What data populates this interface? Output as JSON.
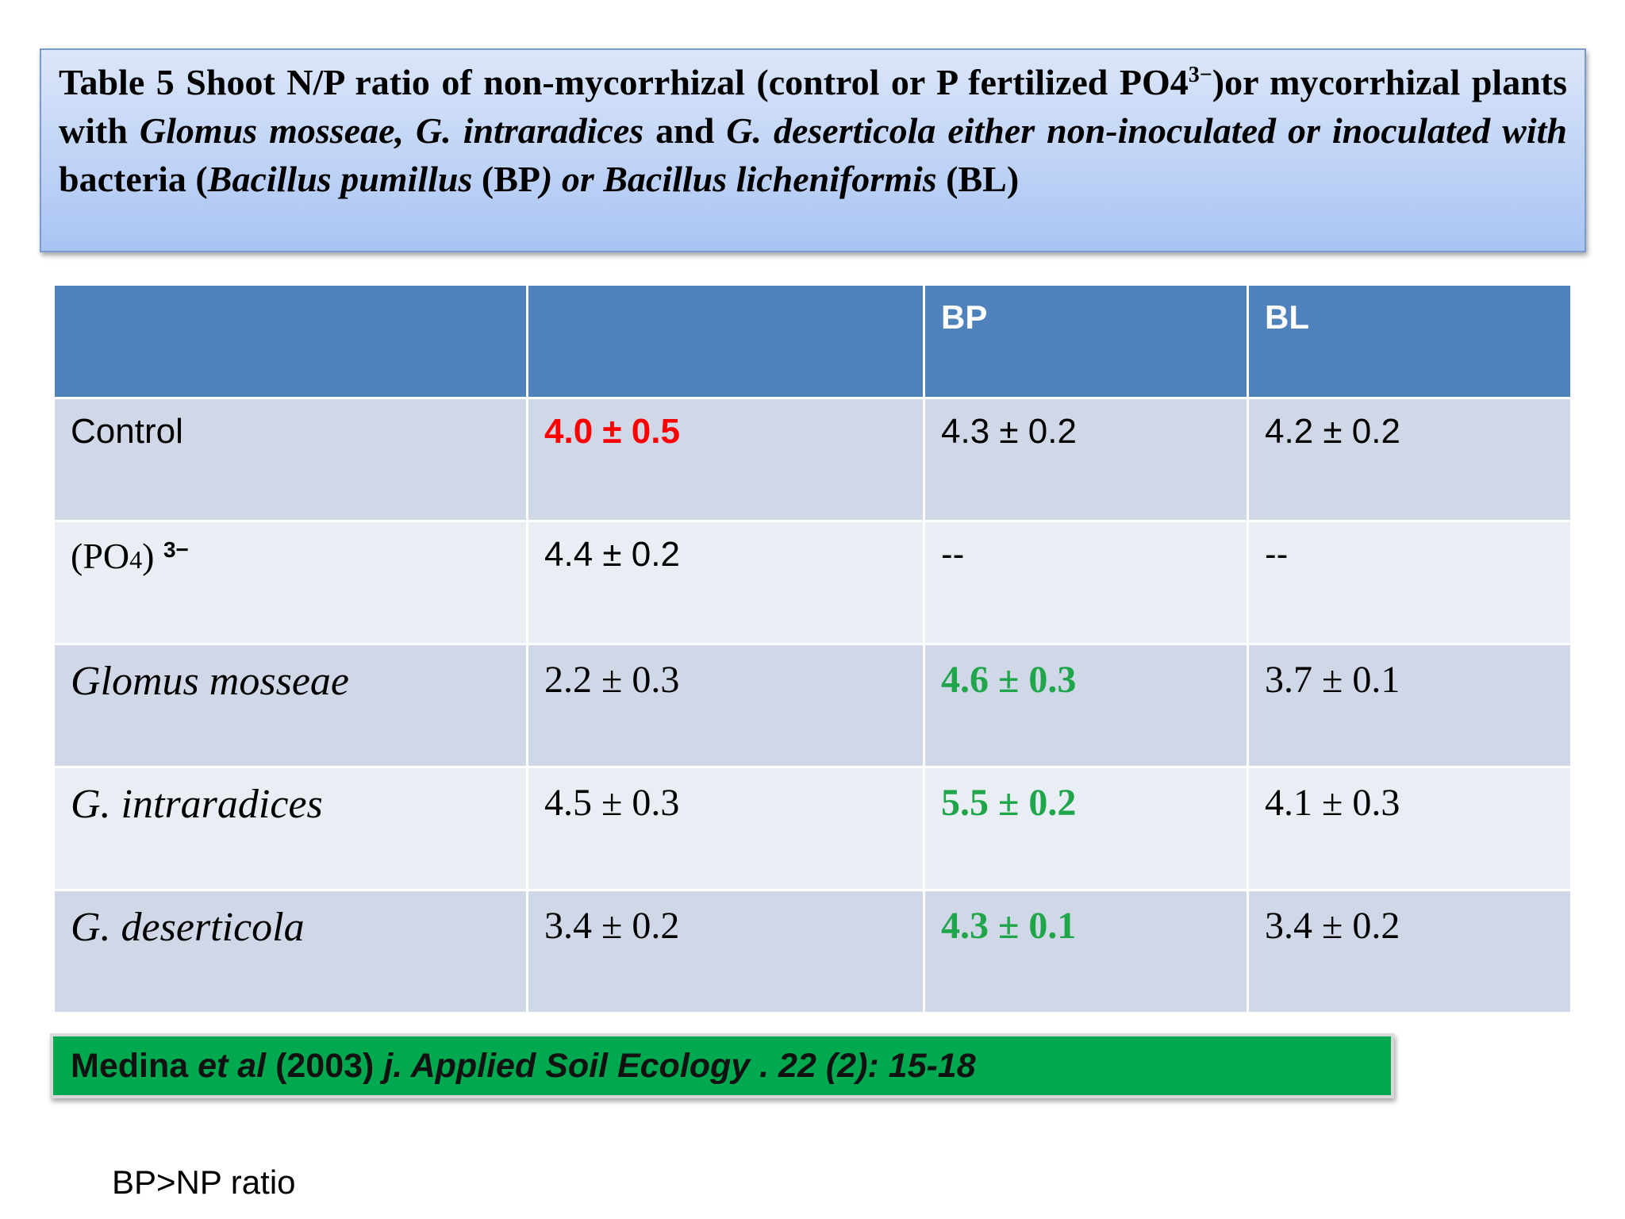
{
  "title": [
    {
      "text": "Table 5 Shoot N/P ratio of non-mycorrhizal (control or P fertilized PO4",
      "style": "bold"
    },
    {
      "text": "3−",
      "style": "sup"
    },
    {
      "text": ")or mycorrhizal plants with ",
      "style": "bold"
    },
    {
      "text": "Glomus mosseae, G. intraradices",
      "style": "bold-italic"
    },
    {
      "text": " and ",
      "style": "bold"
    },
    {
      "text": "G. deserticola either non-inoculated or inoculated with",
      "style": "bold-italic"
    },
    {
      "text": " bacteria  (",
      "style": "bold"
    },
    {
      "text": "Bacillus pumillus",
      "style": "bold-italic"
    },
    {
      "text": " (BP",
      "style": "bold"
    },
    {
      "text": ") or Bacillus licheniformis",
      "style": "bold-italic"
    },
    {
      "text": " (BL)",
      "style": "bold"
    }
  ],
  "table": {
    "header": [
      null,
      null,
      "BP",
      "BL"
    ],
    "rows": [
      {
        "label": [
          {
            "text": "Control",
            "style": "sans"
          }
        ],
        "cells": [
          {
            "text": "4.0 ± 0.5",
            "color": "#ff0000",
            "bold": true
          },
          {
            "text": "4.3 ± 0.2"
          },
          {
            "text": "4.2 ± 0.2"
          }
        ],
        "font": "sans"
      },
      {
        "label": [
          {
            "text": "(PO",
            "style": "serif"
          },
          {
            "text": "4",
            "style": "serif-small"
          },
          {
            "text": ") ",
            "style": "serif"
          },
          {
            "text": "3−",
            "style": "sup-sans"
          }
        ],
        "cells": [
          {
            "text": "4.4 ± 0.2"
          },
          {
            "text": "--"
          },
          {
            "text": "--"
          }
        ],
        "font": "sans"
      },
      {
        "label": [
          {
            "text": "Glomus mosseae",
            "style": "serif-italic"
          }
        ],
        "cells": [
          {
            "text": "2.2 ± 0.3"
          },
          {
            "text": "4.6 ± 0.3",
            "color": "#1fa54a",
            "bold": true
          },
          {
            "text": "3.7 ± 0.1"
          }
        ],
        "font": "serif"
      },
      {
        "label": [
          {
            "text": "G. intraradices",
            "style": "serif-italic"
          }
        ],
        "cells": [
          {
            "text": "4.5 ± 0.3"
          },
          {
            "text": "5.5 ± 0.2",
            "color": "#1fa54a",
            "bold": true
          },
          {
            "text": "4.1 ± 0.3"
          }
        ],
        "font": "serif"
      },
      {
        "label": [
          {
            "text": "G. deserticola",
            "style": "serif-italic"
          }
        ],
        "cells": [
          {
            "text": "3.4 ± 0.2"
          },
          {
            "text": "4.3 ± 0.1",
            "color": "#1fa54a",
            "bold": true
          },
          {
            "text": "3.4 ± 0.2"
          }
        ],
        "font": "serif"
      }
    ]
  },
  "citation": [
    {
      "text": "Medina ",
      "style": "bold"
    },
    {
      "text": "et al",
      "style": "bold-italic"
    },
    {
      "text": " (2003) ",
      "style": "bold"
    },
    {
      "text": "j. Applied Soil Ecology . 22 (2): 15-18",
      "style": "bold-italic"
    }
  ],
  "note": "BP>NP ratio"
}
